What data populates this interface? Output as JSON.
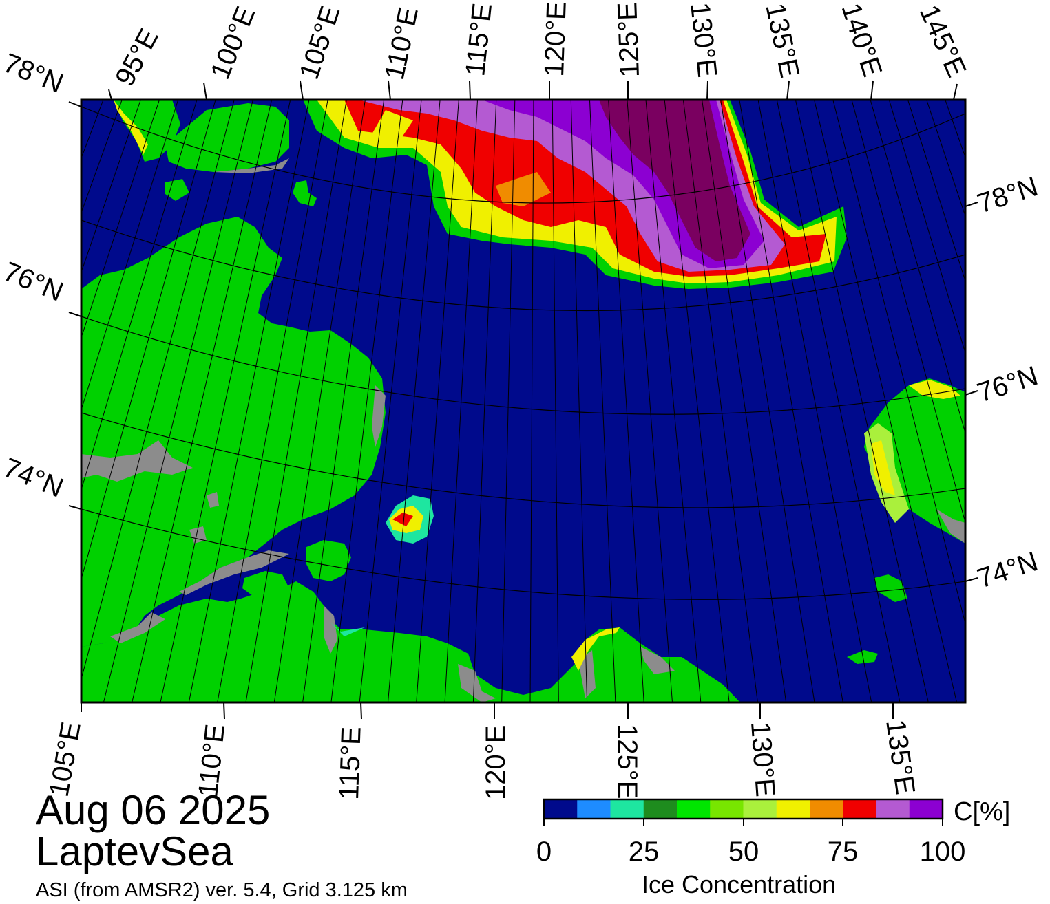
{
  "map": {
    "date": "Aug 06 2025",
    "region": "LaptevSea",
    "source": "ASI (from AMSR2) ver. 5.4,  Grid 3.125 km",
    "top_lon_labels": [
      "95°E",
      "100°E",
      "105°E",
      "110°E",
      "115°E",
      "120°E",
      "125°E",
      "130°E",
      "135°E",
      "140°E",
      "145°E"
    ],
    "bottom_lon_labels": [
      "105°E",
      "110°E",
      "115°E",
      "120°E",
      "125°E",
      "130°E",
      "135°E"
    ],
    "left_lat_labels": [
      "78°N",
      "76°N",
      "74°N"
    ],
    "right_lat_labels": [
      "78°N",
      "76°N",
      "74°N"
    ],
    "colors": {
      "water": "#000a8c",
      "land": "#00d100",
      "coast_gray": "#8c8c8c"
    }
  },
  "colorbar": {
    "title": "Ice Concentration",
    "unit": "C[%]",
    "ticks": [
      "0",
      "25",
      "50",
      "75",
      "100"
    ],
    "colors": [
      "#000a8c",
      "#1e8cff",
      "#1ee6a0",
      "#1e8c1e",
      "#00e600",
      "#78e600",
      "#aaf03c",
      "#f0f000",
      "#f08c00",
      "#f00000",
      "#b45ad2",
      "#8c00d2"
    ]
  }
}
